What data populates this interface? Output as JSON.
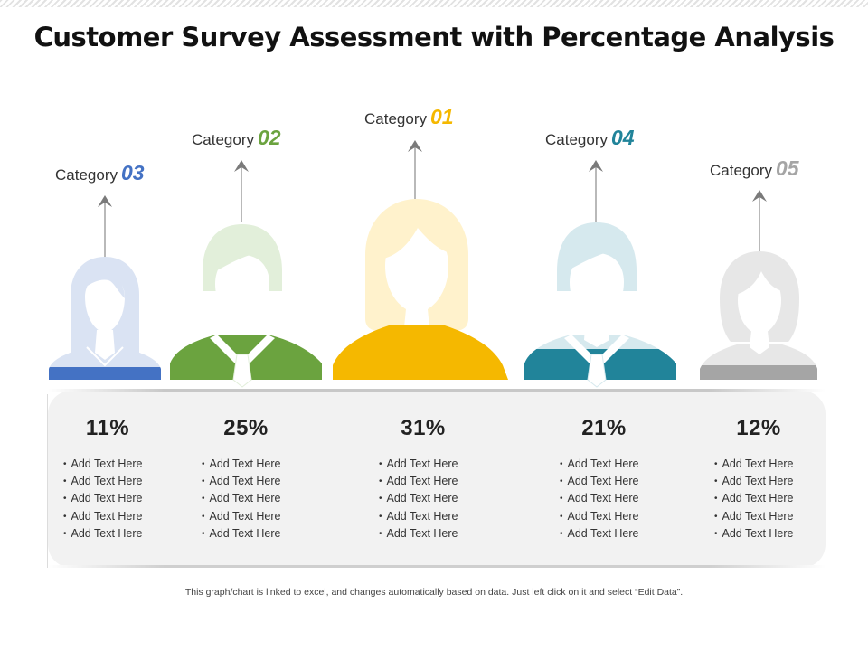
{
  "title": "Customer Survey Assessment with Percentage Analysis",
  "footer": "This graph/chart is linked to excel, and changes automatically based on data. Just left click on it and select “Edit Data”.",
  "colors": {
    "cat01": "#F5B800",
    "cat02": "#6BA33F",
    "cat03": "#4472C4",
    "cat04": "#21849A",
    "cat05": "#A5A5A5"
  },
  "chart_data": {
    "type": "bar",
    "title": "Customer Survey Assessment with Percentage Analysis",
    "categories": [
      "Category 03",
      "Category 02",
      "Category 01",
      "Category 04",
      "Category 05"
    ],
    "values": [
      11,
      25,
      31,
      21,
      12
    ],
    "unit": "%"
  },
  "categories": [
    {
      "label": "Category",
      "num": "03",
      "pct": "11%",
      "items": [
        "Add Text Here",
        "Add Text Here",
        "Add Text Here",
        "Add Text Here",
        "Add Text Here"
      ]
    },
    {
      "label": "Category",
      "num": "02",
      "pct": "25%",
      "items": [
        "Add Text Here",
        "Add Text Here",
        "Add Text Here",
        "Add Text Here",
        "Add Text Here"
      ]
    },
    {
      "label": "Category",
      "num": "01",
      "pct": "31%",
      "items": [
        "Add Text Here",
        "Add Text Here",
        "Add Text Here",
        "Add Text Here",
        "Add Text Here"
      ]
    },
    {
      "label": "Category",
      "num": "04",
      "pct": "21%",
      "items": [
        "Add Text Here",
        "Add Text Here",
        "Add Text Here",
        "Add Text Here",
        "Add Text Here"
      ]
    },
    {
      "label": "Category",
      "num": "05",
      "pct": "12%",
      "items": [
        "Add Text Here",
        "Add Text Here",
        "Add Text Here",
        "Add Text Here",
        "Add Text Here"
      ]
    }
  ]
}
